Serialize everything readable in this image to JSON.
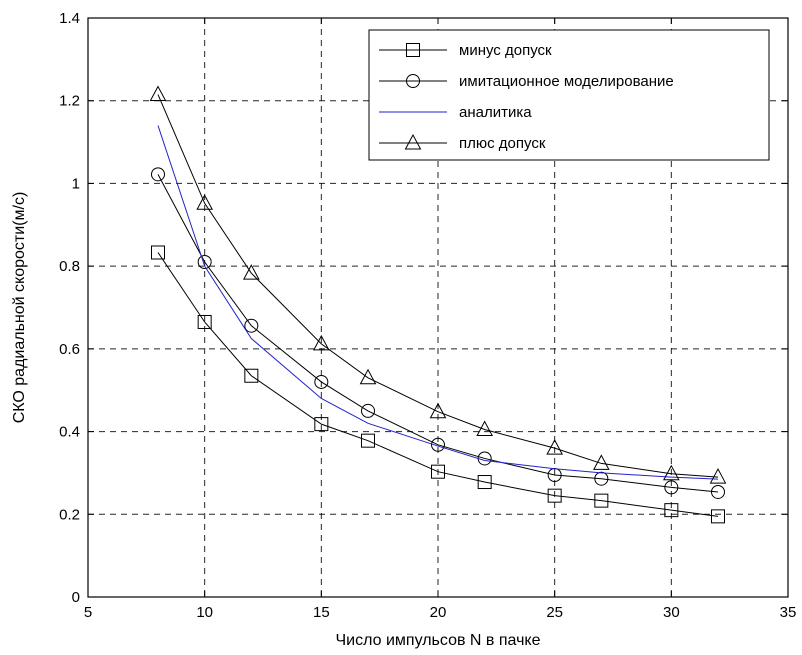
{
  "chart_data": {
    "type": "line",
    "title": "",
    "xlabel": "Число импульсов N в пачке",
    "ylabel": "СКО радиальной скорости(м/с)",
    "xlim": [
      5,
      35
    ],
    "ylim": [
      0,
      1.4
    ],
    "xticks": [
      5,
      10,
      15,
      20,
      25,
      30,
      35
    ],
    "yticks": [
      0,
      0.2,
      0.4,
      0.6,
      0.8,
      1,
      1.2,
      1.4
    ],
    "xtick_labels": [
      "5",
      "10",
      "15",
      "20",
      "25",
      "30",
      "35"
    ],
    "ytick_labels": [
      "0",
      "0.2",
      "0.4",
      "0.6",
      "0.8",
      "1",
      "1.2",
      "1.4"
    ],
    "grid": true,
    "legend_position": "top-right",
    "series": [
      {
        "name": "минус допуск",
        "marker": "square",
        "color": "#000000",
        "x": [
          8,
          10,
          12,
          15,
          17,
          20,
          22,
          25,
          27,
          30,
          32
        ],
        "y": [
          0.833,
          0.665,
          0.535,
          0.418,
          0.378,
          0.303,
          0.278,
          0.245,
          0.233,
          0.21,
          0.195
        ]
      },
      {
        "name": "имитационное моделирование",
        "marker": "circle",
        "color": "#000000",
        "x": [
          8,
          10,
          12,
          15,
          17,
          20,
          22,
          25,
          27,
          30,
          32
        ],
        "y": [
          1.022,
          0.81,
          0.656,
          0.52,
          0.45,
          0.368,
          0.335,
          0.295,
          0.286,
          0.265,
          0.254
        ]
      },
      {
        "name": "аналитика",
        "marker": "none",
        "color": "#2222cc",
        "x": [
          8,
          10,
          12,
          15,
          17,
          20,
          22,
          25,
          27,
          30,
          32
        ],
        "y": [
          1.14,
          0.8,
          0.625,
          0.48,
          0.42,
          0.365,
          0.33,
          0.31,
          0.3,
          0.29,
          0.285
        ]
      },
      {
        "name": "плюс допуск",
        "marker": "triangle",
        "color": "#000000",
        "x": [
          8,
          10,
          12,
          15,
          17,
          20,
          22,
          25,
          27,
          30,
          32
        ],
        "y": [
          1.215,
          0.952,
          0.783,
          0.612,
          0.53,
          0.448,
          0.405,
          0.36,
          0.323,
          0.298,
          0.29
        ]
      }
    ]
  }
}
